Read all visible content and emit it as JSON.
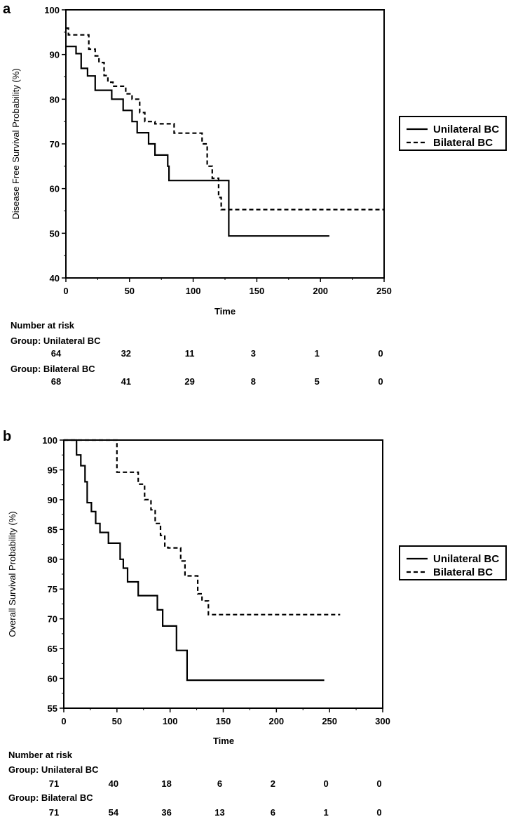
{
  "chart_data": [
    {
      "panel_label": "a",
      "type": "line",
      "step": true,
      "xlabel": "Time",
      "ylabel": "Disease Free Survival Probability (%)",
      "xlim": [
        0,
        250
      ],
      "ylim": [
        40,
        100
      ],
      "xticks": [
        0,
        50,
        100,
        150,
        200,
        250
      ],
      "yticks": [
        40,
        50,
        60,
        70,
        80,
        90,
        100
      ],
      "legend_position": "right",
      "series": [
        {
          "name": "Unilateral BC",
          "style": "solid",
          "x": [
            0,
            8,
            12,
            17,
            23,
            36,
            45,
            52,
            56,
            65,
            70,
            80,
            81,
            128,
            128,
            207
          ],
          "y": [
            91.8,
            90.2,
            86.9,
            85.2,
            82.0,
            80.0,
            77.5,
            75.0,
            72.5,
            70.0,
            67.5,
            65.0,
            61.8,
            61.8,
            49.4,
            49.4
          ]
        },
        {
          "name": "Bilateral BC",
          "style": "dashed",
          "x": [
            0,
            2,
            18,
            23,
            26,
            30,
            33,
            37,
            47,
            52,
            58,
            62,
            70,
            85,
            107,
            111,
            115,
            120,
            122,
            250
          ],
          "y": [
            95.9,
            94.4,
            91.2,
            89.7,
            88.2,
            85.3,
            83.8,
            82.9,
            81.2,
            80.0,
            77.0,
            75.0,
            74.5,
            72.4,
            70.0,
            65.0,
            62.3,
            58.0,
            55.3,
            55.3
          ]
        }
      ],
      "risk_table": {
        "heading": "Number at risk",
        "groups": [
          {
            "label": "Group: Unilateral BC",
            "counts": [
              "64",
              "32",
              "11",
              "3",
              "1",
              "0"
            ]
          },
          {
            "label": "Group: Bilateral BC",
            "counts": [
              "68",
              "41",
              "29",
              "8",
              "5",
              "0"
            ]
          }
        ]
      }
    },
    {
      "panel_label": "b",
      "type": "line",
      "step": true,
      "xlabel": "Time",
      "ylabel": "Overall Survival Probability (%)",
      "xlim": [
        0,
        300
      ],
      "ylim": [
        55,
        100
      ],
      "xticks": [
        0,
        50,
        100,
        150,
        200,
        250,
        300
      ],
      "yticks": [
        55,
        60,
        65,
        70,
        75,
        80,
        85,
        90,
        95,
        100
      ],
      "legend_position": "right",
      "series": [
        {
          "name": "Unilateral BC",
          "style": "solid",
          "x": [
            0,
            10,
            12,
            16,
            20,
            22,
            26,
            30,
            34,
            42,
            53,
            56,
            60,
            70,
            88,
            93,
            106,
            116,
            245
          ],
          "y": [
            100,
            100,
            97.5,
            95.7,
            93.0,
            89.5,
            88.0,
            86.0,
            84.5,
            82.7,
            80.0,
            78.5,
            76.2,
            73.9,
            71.5,
            68.8,
            64.7,
            59.7,
            59.7
          ]
        },
        {
          "name": "Bilateral BC",
          "style": "dashed",
          "x": [
            0,
            45,
            50,
            70,
            76,
            82,
            86,
            91,
            95,
            98,
            110,
            114,
            126,
            130,
            136,
            260
          ],
          "y": [
            100,
            100,
            94.6,
            92.6,
            90.0,
            88.3,
            86.0,
            84.0,
            82.0,
            81.9,
            79.7,
            77.2,
            74.2,
            73.0,
            70.7,
            70.7
          ]
        }
      ],
      "risk_table": {
        "heading": "Number at risk",
        "groups": [
          {
            "label": "Group: Unilateral BC",
            "counts": [
              "71",
              "40",
              "18",
              "6",
              "2",
              "0",
              "0"
            ]
          },
          {
            "label": "Group: Bilateral BC",
            "counts": [
              "71",
              "54",
              "36",
              "13",
              "6",
              "1",
              "0"
            ]
          }
        ]
      }
    }
  ]
}
